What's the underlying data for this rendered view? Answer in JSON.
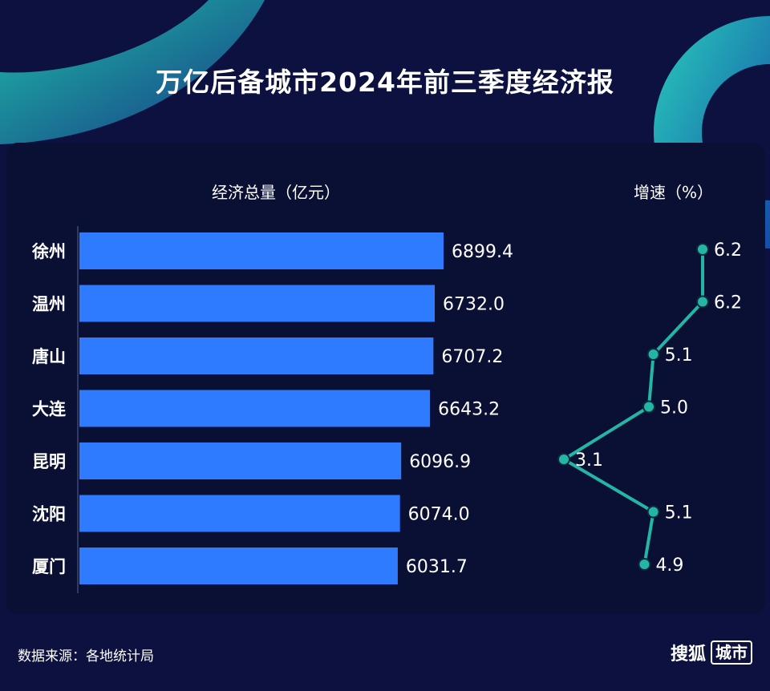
{
  "title": "万亿后备城市2024年前三季度经济报",
  "gdp_header": "经济总量（亿元）",
  "growth_header": "增速（%）",
  "source": "数据来源：各地统计局",
  "brand": {
    "name": "搜狐",
    "badge": "城市"
  },
  "colors": {
    "background": "#0c1140",
    "bar": "#2f7bff",
    "line": "#23b5a6",
    "accent": "#1fd0b3"
  },
  "chart_data": [
    {
      "type": "bar",
      "orientation": "horizontal",
      "categories": [
        "徐州",
        "温州",
        "唐山",
        "大连",
        "昆明",
        "沈阳",
        "厦门"
      ],
      "values": [
        6899.4,
        6732.0,
        6707.2,
        6643.2,
        6096.9,
        6074.0,
        6031.7
      ],
      "value_labels": [
        "6899.4",
        "6732.0",
        "6707.2",
        "6643.2",
        "6096.9",
        "6074.0",
        "6031.7"
      ],
      "title": "经济总量（亿元）",
      "xlim": [
        0,
        8000
      ]
    },
    {
      "type": "line",
      "orientation": "vertical",
      "categories": [
        "徐州",
        "温州",
        "唐山",
        "大连",
        "昆明",
        "沈阳",
        "厦门"
      ],
      "values": [
        6.2,
        6.2,
        5.1,
        5.0,
        3.1,
        5.1,
        4.9
      ],
      "value_labels": [
        "6.2",
        "6.2",
        "5.1",
        "5.0",
        "3.1",
        "5.1",
        "4.9"
      ],
      "title": "增速（%）",
      "xlim": [
        3.1,
        6.2
      ]
    }
  ]
}
